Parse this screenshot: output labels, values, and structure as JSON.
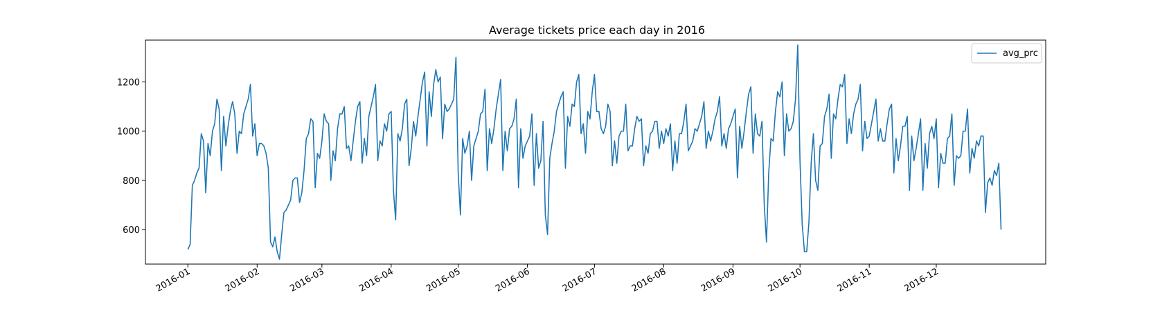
{
  "chart_data": {
    "type": "line",
    "title": "Average tickets price each day in 2016",
    "xlabel": "",
    "ylabel": "",
    "x_start": "2016-01-01",
    "x_end": "2016-12-25",
    "xlim": [
      "2015-12-13",
      "2017-01-19"
    ],
    "ylim": [
      460,
      1370
    ],
    "x_ticks": [
      "2016-01-01",
      "2016-02-01",
      "2016-03-01",
      "2016-04-01",
      "2016-05-01",
      "2016-06-01",
      "2016-07-01",
      "2016-08-01",
      "2016-09-01",
      "2016-10-01",
      "2016-11-01",
      "2016-12-01"
    ],
    "x_tick_labels": [
      "2016-01",
      "2016-02",
      "2016-03",
      "2016-04",
      "2016-05",
      "2016-06",
      "2016-07",
      "2016-08",
      "2016-09",
      "2016-10",
      "2016-11",
      "2016-12"
    ],
    "y_ticks": [
      600,
      800,
      1000,
      1200
    ],
    "y_tick_labels": [
      "600",
      "800",
      "1000",
      "1200"
    ],
    "grid": false,
    "legend": {
      "position": "top-right"
    },
    "series": [
      {
        "name": "avg_prc",
        "color": "#1f77b4",
        "values": [
          520,
          540,
          780,
          800,
          830,
          850,
          990,
          960,
          750,
          950,
          900,
          1000,
          1030,
          1130,
          1090,
          840,
          1060,
          940,
          1020,
          1080,
          1120,
          1070,
          910,
          1000,
          990,
          1070,
          1100,
          1130,
          1190,
          980,
          1030,
          900,
          950,
          950,
          940,
          910,
          850,
          550,
          530,
          570,
          510,
          480,
          580,
          670,
          680,
          700,
          720,
          800,
          810,
          810,
          710,
          750,
          840,
          970,
          990,
          1050,
          1040,
          770,
          910,
          890,
          960,
          1070,
          1040,
          1030,
          800,
          920,
          880,
          1010,
          1070,
          1070,
          1100,
          930,
          940,
          880,
          960,
          1040,
          1100,
          1120,
          870,
          970,
          900,
          1060,
          1100,
          1140,
          1190,
          880,
          960,
          940,
          1030,
          1000,
          1070,
          1080,
          760,
          640,
          990,
          960,
          1010,
          1110,
          1130,
          860,
          930,
          1040,
          980,
          1060,
          1130,
          1200,
          1240,
          940,
          1160,
          1060,
          1190,
          1250,
          1200,
          1220,
          970,
          1110,
          1080,
          1090,
          1110,
          1130,
          1300,
          830,
          660,
          970,
          910,
          940,
          1000,
          800,
          940,
          970,
          1000,
          1070,
          1080,
          1170,
          840,
          1010,
          950,
          1010,
          1090,
          1150,
          1210,
          840,
          1000,
          920,
          1010,
          1020,
          1050,
          1130,
          770,
          1010,
          890,
          940,
          960,
          980,
          1070,
          780,
          990,
          850,
          880,
          1040,
          660,
          580,
          890,
          950,
          1000,
          1080,
          1110,
          1140,
          1160,
          850,
          1060,
          1020,
          1110,
          1100,
          1200,
          1230,
          990,
          1030,
          910,
          1080,
          1050,
          1160,
          1230,
          1080,
          1080,
          1010,
          990,
          1020,
          1110,
          1080,
          860,
          960,
          870,
          980,
          1000,
          1000,
          1110,
          920,
          940,
          940,
          1010,
          1060,
          1040,
          1050,
          860,
          940,
          910,
          990,
          1000,
          1040,
          1040,
          930,
          1000,
          950,
          1010,
          980,
          1030,
          840,
          960,
          870,
          990,
          990,
          1040,
          1110,
          920,
          940,
          960,
          1010,
          1000,
          1030,
          1060,
          1120,
          930,
          1000,
          960,
          1000,
          1050,
          1080,
          1140,
          940,
          990,
          930,
          1010,
          1030,
          1060,
          1090,
          810,
          1020,
          930,
          1000,
          1080,
          1150,
          1180,
          910,
          1070,
          990,
          980,
          1040,
          700,
          550,
          830,
          970,
          960,
          1080,
          1160,
          1140,
          1200,
          900,
          1070,
          1000,
          1010,
          1040,
          1130,
          1350,
          880,
          620,
          510,
          510,
          630,
          870,
          990,
          800,
          760,
          940,
          950,
          1060,
          1090,
          1150,
          890,
          1070,
          1050,
          1130,
          1190,
          1180,
          1230,
          950,
          1050,
          990,
          1070,
          1110,
          1130,
          1190,
          920,
          1040,
          970,
          980,
          1030,
          1080,
          1130,
          960,
          1010,
          960,
          960,
          1030,
          1090,
          1110,
          830,
          970,
          880,
          940,
          1020,
          1020,
          1060,
          760,
          980,
          880,
          930,
          990,
          1050,
          760,
          950,
          850,
          990,
          1020,
          970,
          1050,
          770,
          910,
          870,
          870,
          970,
          980,
          1070,
          780,
          900,
          890,
          900,
          1000,
          1000,
          1090,
          830,
          930,
          890,
          960,
          940,
          980,
          980,
          670,
          790,
          810,
          780,
          840,
          820,
          870,
          600
        ]
      }
    ]
  }
}
